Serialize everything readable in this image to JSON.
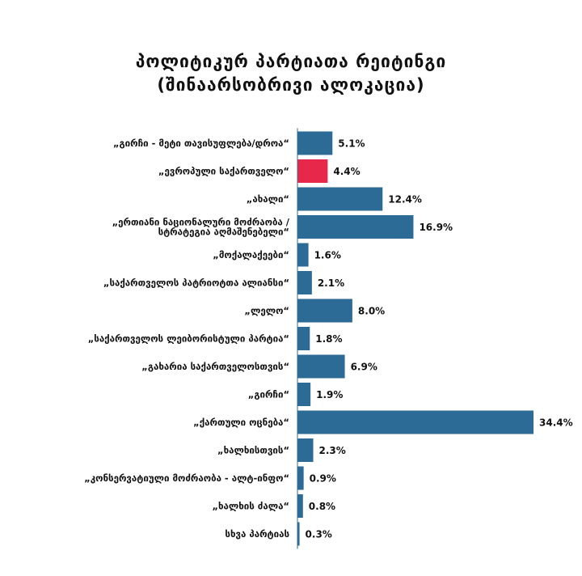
{
  "header": {
    "title_line1": "პოლიტიკურ პარტიათა რეიტინგი",
    "title_line2": "(შინაარსობრივი ალოკაცია)"
  },
  "colors": {
    "bar_default": "#2c6b96",
    "bar_highlight": "#e8284a",
    "axis": "#2c6b96",
    "text": "#111111"
  },
  "chart_data": {
    "type": "bar",
    "orientation": "horizontal",
    "title": "პოლიტიკურ პარტიათა რეიტინგი (შინაარსობრივი ალოკაცია)",
    "xlabel": "",
    "ylabel": "",
    "xlim": [
      0,
      35
    ],
    "grid": false,
    "value_format": "percent",
    "categories": [
      [
        "„გირჩი - მეტი თავისუფლება/დროა“"
      ],
      [
        "„ევროპული საქართველო“"
      ],
      [
        "„ახალი“"
      ],
      [
        "„ერთიანი ნაციონალური მოძრაობა /",
        "სტრატეგია აღმაშენებელი“"
      ],
      [
        "„მოქალაქეები“"
      ],
      [
        "„საქართველოს პატრიოტთა ალიანსი“"
      ],
      [
        "„ლელო“"
      ],
      [
        "„საქართველოს ლეიბორისტული პარტია“"
      ],
      [
        "„გახარია საქართველოსთვის“"
      ],
      [
        "„გირჩი“"
      ],
      [
        "„ქართული ოცნება“"
      ],
      [
        "„ხალხისთვის“"
      ],
      [
        "„კონსერვატიული მოძრაობა - ალტ-ინფო“"
      ],
      [
        "„ხალხის ძალა“"
      ],
      [
        "სხვა პარტიას"
      ]
    ],
    "values": [
      5.1,
      4.4,
      12.4,
      16.9,
      1.6,
      2.1,
      8.0,
      1.8,
      6.9,
      1.9,
      34.4,
      2.3,
      0.9,
      0.8,
      0.3
    ],
    "value_labels": [
      "5.1%",
      "4.4%",
      "12.4%",
      "16.9%",
      "1.6%",
      "2.1%",
      "8.0%",
      "1.8%",
      "6.9%",
      "1.9%",
      "34.4%",
      "2.3%",
      "0.9%",
      "0.8%",
      "0.3%"
    ],
    "highlight_index": 1
  }
}
